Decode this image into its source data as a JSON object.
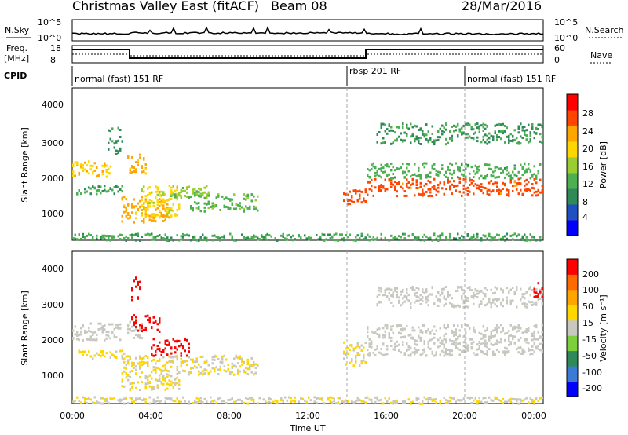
{
  "header": {
    "title": "Christmas Valley East (fitACF)",
    "beam": "Beam 08",
    "date": "28/Mar/2016"
  },
  "strip_nsky": {
    "left_label": "N.Sky",
    "right_label": "N.Search",
    "left_ticks": [
      "10^5",
      "10^0"
    ],
    "right_ticks": [
      "10^5",
      "10^0"
    ]
  },
  "strip_freq": {
    "left_label_1": "Freq.",
    "left_label_2": "[MHz]",
    "right_label": "Nave",
    "left_ticks": [
      "18",
      "8"
    ],
    "right_ticks": [
      "60",
      "0"
    ]
  },
  "cpid": {
    "label": "CPID",
    "segments": [
      {
        "name": "normal (fast) 151 RF",
        "start": 0,
        "end": 14
      },
      {
        "name": "rbsp 201 RF",
        "start": 14,
        "end": 20
      },
      {
        "name": "normal (fast) 151 RF",
        "start": 20,
        "end": 24
      }
    ]
  },
  "power_panel": {
    "ylabel": "Slant Range [km]",
    "yticks": [
      "4000",
      "3000",
      "2000",
      "1000"
    ],
    "colorbar_label": "Power [dB]",
    "colorbar_ticks": [
      "28",
      "24",
      "20",
      "16",
      "12",
      "8",
      "4"
    ]
  },
  "velocity_panel": {
    "ylabel": "Slant Range [km]",
    "yticks": [
      "4000",
      "3000",
      "2000",
      "1000"
    ],
    "colorbar_label": "Velocity [m s⁻¹]",
    "colorbar_ticks": [
      "200",
      "100",
      "50",
      "15",
      "-15",
      "-50",
      "-100",
      "-200"
    ]
  },
  "xaxis": {
    "label": "Time UT",
    "ticks": [
      "00:00",
      "04:00",
      "08:00",
      "12:00",
      "16:00",
      "20:00",
      "00:00"
    ]
  },
  "colors": {
    "power_scale": [
      "#0000ff",
      "#1f4fc0",
      "#2e8b57",
      "#4caf50",
      "#9acd32",
      "#ffd700",
      "#ffa500",
      "#ff4500",
      "#ff0000"
    ],
    "velocity_scale": [
      "#0000ff",
      "#3b7bd6",
      "#2e8b57",
      "#7cd03b",
      "#c8c8c0",
      "#ffd700",
      "#ffa500",
      "#ff6a00",
      "#ff0000"
    ]
  },
  "chart_data": [
    {
      "type": "heatmap",
      "panel": "power",
      "x_range_hours": [
        0,
        24
      ],
      "y_range_km": [
        180,
        4600
      ],
      "value_range_db": [
        0,
        30
      ],
      "regions": [
        {
          "t0": 0.0,
          "t1": 2.0,
          "r0": 2050,
          "r1": 2500,
          "value": 20
        },
        {
          "t0": 1.8,
          "t1": 2.6,
          "r0": 2700,
          "r1": 3500,
          "value": 8
        },
        {
          "t0": 0.2,
          "t1": 2.8,
          "r0": 1550,
          "r1": 1800,
          "value": 10
        },
        {
          "t0": 2.8,
          "t1": 3.8,
          "r0": 2150,
          "r1": 2700,
          "value": 22
        },
        {
          "t0": 2.5,
          "t1": 5.0,
          "r0": 700,
          "r1": 1500,
          "value": 22
        },
        {
          "t0": 3.5,
          "t1": 5.5,
          "r0": 900,
          "r1": 1800,
          "value": 18
        },
        {
          "t0": 5.0,
          "t1": 7.0,
          "r0": 1400,
          "r1": 1800,
          "value": 14
        },
        {
          "t0": 6.0,
          "t1": 9.5,
          "r0": 1050,
          "r1": 1550,
          "value": 12
        },
        {
          "t0": 13.8,
          "t1": 15.0,
          "r0": 1250,
          "r1": 1700,
          "value": 26
        },
        {
          "t0": 15.0,
          "t1": 24.0,
          "r0": 1500,
          "r1": 2000,
          "value": 26
        },
        {
          "t0": 15.0,
          "t1": 24.0,
          "r0": 2000,
          "r1": 2450,
          "value": 11
        },
        {
          "t0": 15.5,
          "t1": 24.0,
          "r0": 3000,
          "r1": 3600,
          "value": 9
        },
        {
          "t0": 0.0,
          "t1": 24.0,
          "r0": 200,
          "r1": 400,
          "value": 10
        }
      ]
    },
    {
      "type": "heatmap",
      "panel": "velocity",
      "x_range_hours": [
        0,
        24
      ],
      "y_range_km": [
        180,
        4600
      ],
      "value_range_ms": [
        -250,
        250
      ],
      "regions": [
        {
          "t0": 0.0,
          "t1": 2.5,
          "r0": 2050,
          "r1": 2550,
          "value": 0
        },
        {
          "t0": 2.8,
          "t1": 3.6,
          "r0": 2100,
          "r1": 2650,
          "value": 0
        },
        {
          "t0": 3.0,
          "t1": 4.5,
          "r0": 2300,
          "r1": 2800,
          "value": 250
        },
        {
          "t0": 4.0,
          "t1": 6.0,
          "r0": 1600,
          "r1": 2100,
          "value": 250
        },
        {
          "t0": 0.3,
          "t1": 3.0,
          "r0": 1500,
          "r1": 1750,
          "value": 50
        },
        {
          "t0": 2.5,
          "t1": 5.5,
          "r0": 600,
          "r1": 1600,
          "value": 30
        },
        {
          "t0": 5.5,
          "t1": 9.5,
          "r0": 1050,
          "r1": 1600,
          "value": 30
        },
        {
          "t0": 13.8,
          "t1": 15.0,
          "r0": 1300,
          "r1": 2000,
          "value": 30
        },
        {
          "t0": 15.0,
          "t1": 24.0,
          "r0": 1600,
          "r1": 2500,
          "value": 0
        },
        {
          "t0": 15.5,
          "t1": 24.0,
          "r0": 3000,
          "r1": 3600,
          "value": 0
        },
        {
          "t0": 3.0,
          "t1": 3.5,
          "r0": 3200,
          "r1": 3900,
          "value": 250
        },
        {
          "t0": 23.5,
          "t1": 24.0,
          "r0": 3300,
          "r1": 3800,
          "value": 250
        },
        {
          "t0": 0.0,
          "t1": 24.0,
          "r0": 200,
          "r1": 400,
          "value": 20
        }
      ]
    }
  ]
}
